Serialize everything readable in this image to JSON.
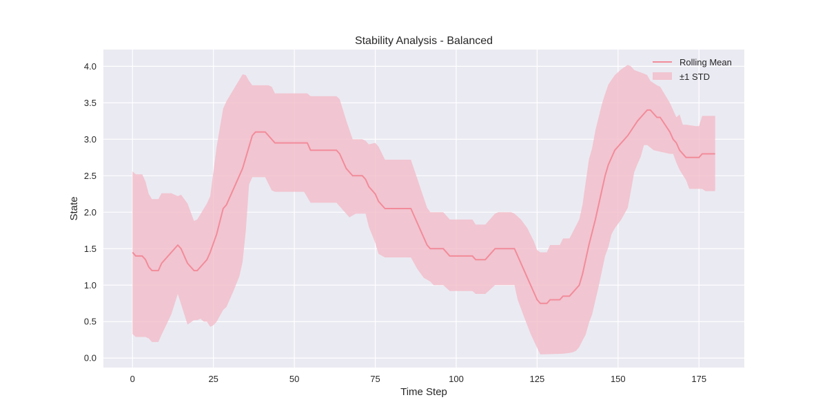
{
  "chart_data": {
    "type": "line",
    "title": "Stability Analysis - Balanced",
    "xlabel": "Time Step",
    "ylabel": "State",
    "xlim": [
      -9,
      189
    ],
    "ylim": [
      -0.13,
      4.23
    ],
    "xticks": [
      0,
      25,
      50,
      75,
      100,
      125,
      150,
      175
    ],
    "yticks": [
      0.0,
      0.5,
      1.0,
      1.5,
      2.0,
      2.5,
      3.0,
      3.5,
      4.0
    ],
    "xtick_labels": [
      "0",
      "25",
      "50",
      "75",
      "100",
      "125",
      "150",
      "175"
    ],
    "ytick_labels": [
      "0.0",
      "0.5",
      "1.0",
      "1.5",
      "2.0",
      "2.5",
      "3.0",
      "3.5",
      "4.0"
    ],
    "grid": true,
    "legend_position": "top-right",
    "colors": {
      "line": "#f28b9a",
      "band": "#f3b8c6",
      "plot_background": "#eaeaf2",
      "grid": "#ffffff"
    },
    "series": [
      {
        "name": "Rolling Mean",
        "points": [
          [
            0,
            1.45
          ],
          [
            1,
            1.4
          ],
          [
            3,
            1.4
          ],
          [
            4,
            1.35
          ],
          [
            5,
            1.25
          ],
          [
            6,
            1.2
          ],
          [
            8,
            1.2
          ],
          [
            9,
            1.3
          ],
          [
            14,
            1.55
          ],
          [
            15,
            1.5
          ],
          [
            17,
            1.3
          ],
          [
            19,
            1.2
          ],
          [
            20,
            1.2
          ],
          [
            23,
            1.35
          ],
          [
            24,
            1.45
          ],
          [
            26,
            1.7
          ],
          [
            28,
            2.05
          ],
          [
            29,
            2.1
          ],
          [
            34,
            2.6
          ],
          [
            37,
            3.05
          ],
          [
            38,
            3.1
          ],
          [
            41,
            3.1
          ],
          [
            44,
            2.95
          ],
          [
            54,
            2.95
          ],
          [
            55,
            2.85
          ],
          [
            63,
            2.85
          ],
          [
            64,
            2.8
          ],
          [
            66,
            2.6
          ],
          [
            68,
            2.5
          ],
          [
            71,
            2.5
          ],
          [
            72,
            2.45
          ],
          [
            73,
            2.35
          ],
          [
            75,
            2.25
          ],
          [
            76,
            2.15
          ],
          [
            78,
            2.05
          ],
          [
            86,
            2.05
          ],
          [
            91,
            1.55
          ],
          [
            92,
            1.5
          ],
          [
            96,
            1.5
          ],
          [
            98,
            1.4
          ],
          [
            105,
            1.4
          ],
          [
            106,
            1.35
          ],
          [
            109,
            1.35
          ],
          [
            112,
            1.5
          ],
          [
            118,
            1.5
          ],
          [
            125,
            0.8
          ],
          [
            126,
            0.75
          ],
          [
            128,
            0.75
          ],
          [
            129,
            0.8
          ],
          [
            132,
            0.8
          ],
          [
            133,
            0.85
          ],
          [
            135,
            0.85
          ],
          [
            138,
            1.0
          ],
          [
            139,
            1.15
          ],
          [
            141,
            1.55
          ],
          [
            143,
            1.9
          ],
          [
            145,
            2.3
          ],
          [
            146,
            2.5
          ],
          [
            147,
            2.65
          ],
          [
            149,
            2.85
          ],
          [
            153,
            3.05
          ],
          [
            156,
            3.25
          ],
          [
            158,
            3.35
          ],
          [
            159,
            3.4
          ],
          [
            160,
            3.4
          ],
          [
            162,
            3.3
          ],
          [
            163,
            3.3
          ],
          [
            166,
            3.1
          ],
          [
            167,
            3.0
          ],
          [
            168,
            2.95
          ],
          [
            169,
            2.85
          ],
          [
            171,
            2.75
          ],
          [
            175,
            2.75
          ],
          [
            176,
            2.8
          ],
          [
            180,
            2.8
          ]
        ]
      },
      {
        "name": "±1 STD",
        "upper": [
          [
            0,
            2.56
          ],
          [
            1,
            2.52
          ],
          [
            3,
            2.52
          ],
          [
            4,
            2.42
          ],
          [
            5,
            2.25
          ],
          [
            6,
            2.18
          ],
          [
            8,
            2.18
          ],
          [
            9,
            2.26
          ],
          [
            12,
            2.26
          ],
          [
            14,
            2.22
          ],
          [
            15,
            2.24
          ],
          [
            17,
            2.12
          ],
          [
            19,
            1.88
          ],
          [
            20,
            1.9
          ],
          [
            23,
            2.12
          ],
          [
            24,
            2.22
          ],
          [
            26,
            2.9
          ],
          [
            28,
            3.42
          ],
          [
            29,
            3.52
          ],
          [
            34,
            3.89
          ],
          [
            35,
            3.88
          ],
          [
            36,
            3.8
          ],
          [
            37,
            3.74
          ],
          [
            42,
            3.74
          ],
          [
            43,
            3.72
          ],
          [
            44,
            3.63
          ],
          [
            54,
            3.63
          ],
          [
            55,
            3.59
          ],
          [
            63,
            3.59
          ],
          [
            64,
            3.55
          ],
          [
            66,
            3.26
          ],
          [
            68,
            3.0
          ],
          [
            71,
            3.0
          ],
          [
            72,
            2.98
          ],
          [
            73,
            2.93
          ],
          [
            75,
            2.95
          ],
          [
            76,
            2.9
          ],
          [
            78,
            2.72
          ],
          [
            86,
            2.72
          ],
          [
            91,
            2.06
          ],
          [
            92,
            2.0
          ],
          [
            96,
            2.0
          ],
          [
            98,
            1.9
          ],
          [
            105,
            1.9
          ],
          [
            106,
            1.83
          ],
          [
            109,
            1.83
          ],
          [
            112,
            1.98
          ],
          [
            113,
            2.0
          ],
          [
            117,
            2.0
          ],
          [
            118,
            1.98
          ],
          [
            120,
            1.9
          ],
          [
            122,
            1.78
          ],
          [
            124,
            1.6
          ],
          [
            125,
            1.48
          ],
          [
            126,
            1.45
          ],
          [
            128,
            1.45
          ],
          [
            129,
            1.55
          ],
          [
            132,
            1.55
          ],
          [
            133,
            1.64
          ],
          [
            135,
            1.64
          ],
          [
            138,
            1.9
          ],
          [
            139,
            2.1
          ],
          [
            141,
            2.72
          ],
          [
            142,
            2.88
          ],
          [
            143,
            3.12
          ],
          [
            145,
            3.48
          ],
          [
            146,
            3.62
          ],
          [
            147,
            3.75
          ],
          [
            149,
            3.88
          ],
          [
            151,
            3.96
          ],
          [
            153,
            4.02
          ],
          [
            154,
            4.0
          ],
          [
            155,
            3.95
          ],
          [
            158,
            3.9
          ],
          [
            159,
            3.88
          ],
          [
            160,
            3.8
          ],
          [
            162,
            3.74
          ],
          [
            163,
            3.72
          ],
          [
            166,
            3.5
          ],
          [
            167,
            3.4
          ],
          [
            168,
            3.3
          ],
          [
            169,
            3.34
          ],
          [
            170,
            3.2
          ],
          [
            171,
            3.2
          ],
          [
            174,
            3.18
          ],
          [
            175,
            3.18
          ],
          [
            176,
            3.32
          ],
          [
            180,
            3.32
          ]
        ],
        "lower": [
          [
            0,
            0.33
          ],
          [
            1,
            0.29
          ],
          [
            4,
            0.29
          ],
          [
            5,
            0.27
          ],
          [
            6,
            0.22
          ],
          [
            8,
            0.22
          ],
          [
            9,
            0.32
          ],
          [
            12,
            0.6
          ],
          [
            14,
            0.88
          ],
          [
            15,
            0.74
          ],
          [
            17,
            0.46
          ],
          [
            19,
            0.52
          ],
          [
            20,
            0.52
          ],
          [
            21,
            0.54
          ],
          [
            22,
            0.5
          ],
          [
            23,
            0.5
          ],
          [
            24,
            0.43
          ],
          [
            25,
            0.45
          ],
          [
            26,
            0.5
          ],
          [
            28,
            0.66
          ],
          [
            29,
            0.7
          ],
          [
            31,
            0.9
          ],
          [
            33,
            1.12
          ],
          [
            34,
            1.32
          ],
          [
            35,
            1.75
          ],
          [
            36,
            2.38
          ],
          [
            37,
            2.48
          ],
          [
            41,
            2.48
          ],
          [
            43,
            2.3
          ],
          [
            44,
            2.28
          ],
          [
            53,
            2.28
          ],
          [
            55,
            2.13
          ],
          [
            63,
            2.13
          ],
          [
            66,
            1.98
          ],
          [
            67,
            1.93
          ],
          [
            69,
            1.98
          ],
          [
            72,
            1.98
          ],
          [
            73,
            1.8
          ],
          [
            75,
            1.58
          ],
          [
            76,
            1.43
          ],
          [
            78,
            1.38
          ],
          [
            86,
            1.38
          ],
          [
            88,
            1.22
          ],
          [
            90,
            1.1
          ],
          [
            92,
            1.05
          ],
          [
            93,
            1.0
          ],
          [
            96,
            1.0
          ],
          [
            98,
            0.92
          ],
          [
            105,
            0.92
          ],
          [
            106,
            0.88
          ],
          [
            109,
            0.88
          ],
          [
            112,
            1.0
          ],
          [
            118,
            1.0
          ],
          [
            119,
            0.8
          ],
          [
            121,
            0.56
          ],
          [
            123,
            0.33
          ],
          [
            125,
            0.14
          ],
          [
            126,
            0.05
          ],
          [
            133,
            0.06
          ],
          [
            135,
            0.07
          ],
          [
            136,
            0.08
          ],
          [
            137,
            0.1
          ],
          [
            138,
            0.15
          ],
          [
            139,
            0.24
          ],
          [
            140,
            0.32
          ],
          [
            141,
            0.48
          ],
          [
            142,
            0.6
          ],
          [
            144,
            0.98
          ],
          [
            146,
            1.4
          ],
          [
            147,
            1.52
          ],
          [
            148,
            1.7
          ],
          [
            149,
            1.78
          ],
          [
            151,
            1.9
          ],
          [
            153,
            2.06
          ],
          [
            154,
            2.3
          ],
          [
            155,
            2.55
          ],
          [
            156,
            2.66
          ],
          [
            157,
            2.76
          ],
          [
            158,
            2.92
          ],
          [
            159,
            2.92
          ],
          [
            161,
            2.85
          ],
          [
            164,
            2.82
          ],
          [
            166,
            2.8
          ],
          [
            167,
            2.8
          ],
          [
            168,
            2.68
          ],
          [
            169,
            2.58
          ],
          [
            171,
            2.44
          ],
          [
            172,
            2.32
          ],
          [
            176,
            2.32
          ],
          [
            177,
            2.29
          ],
          [
            180,
            2.29
          ]
        ]
      }
    ]
  }
}
